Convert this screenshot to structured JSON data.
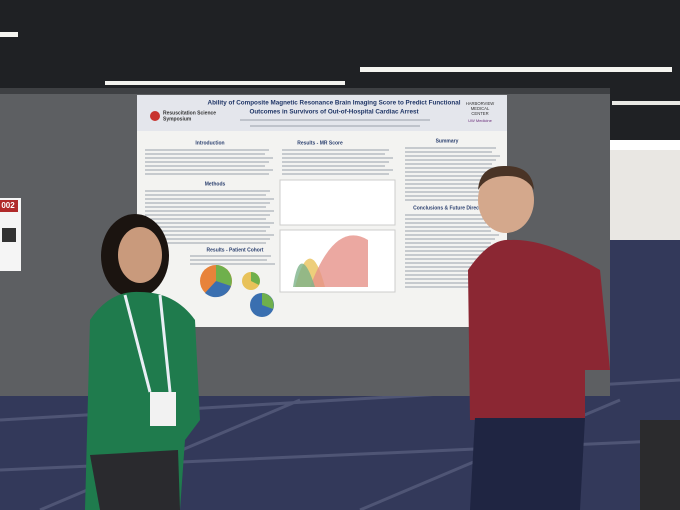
{
  "poster": {
    "title_line1": "Ability of Composite Magnetic Resonance Brain Imaging Score to Predict Functional",
    "title_line2": "Outcomes in Survivors of Out-of-Hospital Cardiac Arrest",
    "symposium": [
      "Resuscitation Science",
      "Symposium"
    ],
    "institution": [
      "HARBORVIEW",
      "MEDICAL",
      "CENTER",
      "UW Medicine"
    ],
    "sections": {
      "introduction": "Introduction",
      "methods": "Methods",
      "results_mr": "Results - MR Score",
      "summary": "Summary",
      "conclusions": "Conclusions & Future Directions",
      "results_cohort": "Results - Patient Cohort"
    }
  },
  "sign": "002"
}
